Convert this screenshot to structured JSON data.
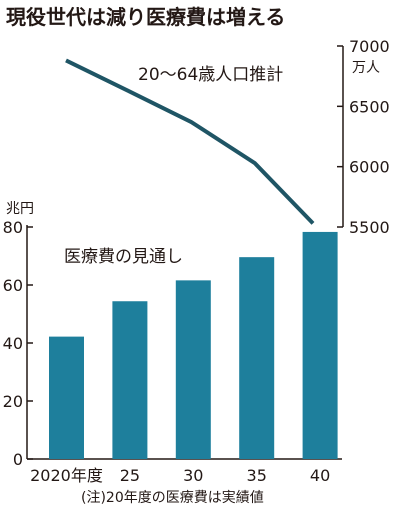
{
  "title": "現役世代は減り医療費は増える",
  "note": "(注)20年度の医療費は実績値",
  "colors": {
    "bar": "#1e7f9c",
    "line": "#1f5565",
    "text": "#231815",
    "axis": "#231815"
  },
  "chart_data": [
    {
      "type": "bar",
      "name": "医療費の見通し",
      "categories": [
        "2020年度",
        "25",
        "30",
        "35",
        "40"
      ],
      "values": [
        42.2,
        54.4,
        61.6,
        69.6,
        78.3
      ],
      "unit": "兆円",
      "ylim": [
        0,
        80
      ],
      "yticks": [
        0,
        20,
        40,
        60,
        80
      ],
      "axis_side": "left"
    },
    {
      "type": "line",
      "name": "20〜64歳人口推計",
      "categories": [
        "2020年度",
        "25",
        "30",
        "35",
        "40"
      ],
      "values": [
        6880,
        6630,
        6370,
        6030,
        5530
      ],
      "unit": "万人",
      "ylim": [
        5500,
        7000
      ],
      "yticks": [
        5500,
        6000,
        6500,
        7000
      ],
      "axis_side": "right"
    }
  ]
}
